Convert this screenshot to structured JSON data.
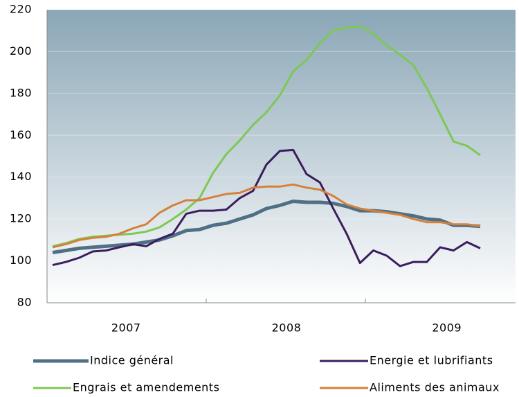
{
  "chart_data": {
    "type": "line",
    "categories": [
      null,
      null,
      null,
      null,
      null,
      null,
      "2007",
      null,
      null,
      null,
      null,
      null,
      null,
      null,
      null,
      null,
      null,
      null,
      "2008",
      null,
      null,
      null,
      null,
      null,
      null,
      null,
      null,
      null,
      null,
      null,
      "2009",
      null,
      null
    ],
    "series": [
      {
        "name": "Indice général",
        "color": "#4f6f84",
        "values": [
          104,
          105,
          106,
          106.5,
          107,
          107.5,
          108,
          109,
          110,
          112,
          114.5,
          115,
          117,
          118,
          120,
          122,
          125,
          126.5,
          128.5,
          128,
          128,
          127.5,
          126,
          124,
          124,
          123.5,
          122.5,
          121.5,
          120,
          119.5,
          117,
          117,
          116.5
        ]
      },
      {
        "name": "Energie et lubrifiants",
        "color": "#3b1c5e",
        "values": [
          98,
          99.5,
          101.5,
          104.5,
          105,
          106.5,
          108,
          107,
          110.5,
          113,
          122.5,
          124,
          124,
          124.5,
          130,
          133.5,
          146,
          152.5,
          153,
          141.5,
          137.5,
          125,
          113,
          99,
          105,
          102.5,
          97.5,
          99.5,
          99.5,
          106.5,
          105,
          109,
          106
        ]
      },
      {
        "name": "Engrais et amendements",
        "color": "#7dc855",
        "values": [
          107,
          108.5,
          110.5,
          111.5,
          112,
          112.5,
          113,
          114,
          116,
          120,
          124.5,
          130,
          142,
          151,
          157.5,
          165,
          171,
          179,
          190.5,
          196,
          204,
          210,
          211.5,
          212,
          208.5,
          203,
          198.5,
          193.5,
          182.5,
          170,
          157,
          155,
          150.5
        ]
      },
      {
        "name": "Aliments des animaux",
        "color": "#d5803b",
        "values": [
          106.5,
          108,
          110,
          111,
          111.5,
          113,
          115.5,
          117.5,
          123,
          126.5,
          129,
          129,
          130.5,
          132,
          132.5,
          135,
          135.5,
          135.5,
          136.5,
          135,
          134,
          131,
          127,
          125,
          124,
          123,
          122,
          120,
          118.5,
          118.5,
          117.5,
          117.5,
          116.5
        ]
      }
    ],
    "ylim": [
      80,
      220
    ],
    "yticks": [
      80,
      100,
      120,
      140,
      160,
      180,
      200,
      220
    ],
    "grid": true
  }
}
